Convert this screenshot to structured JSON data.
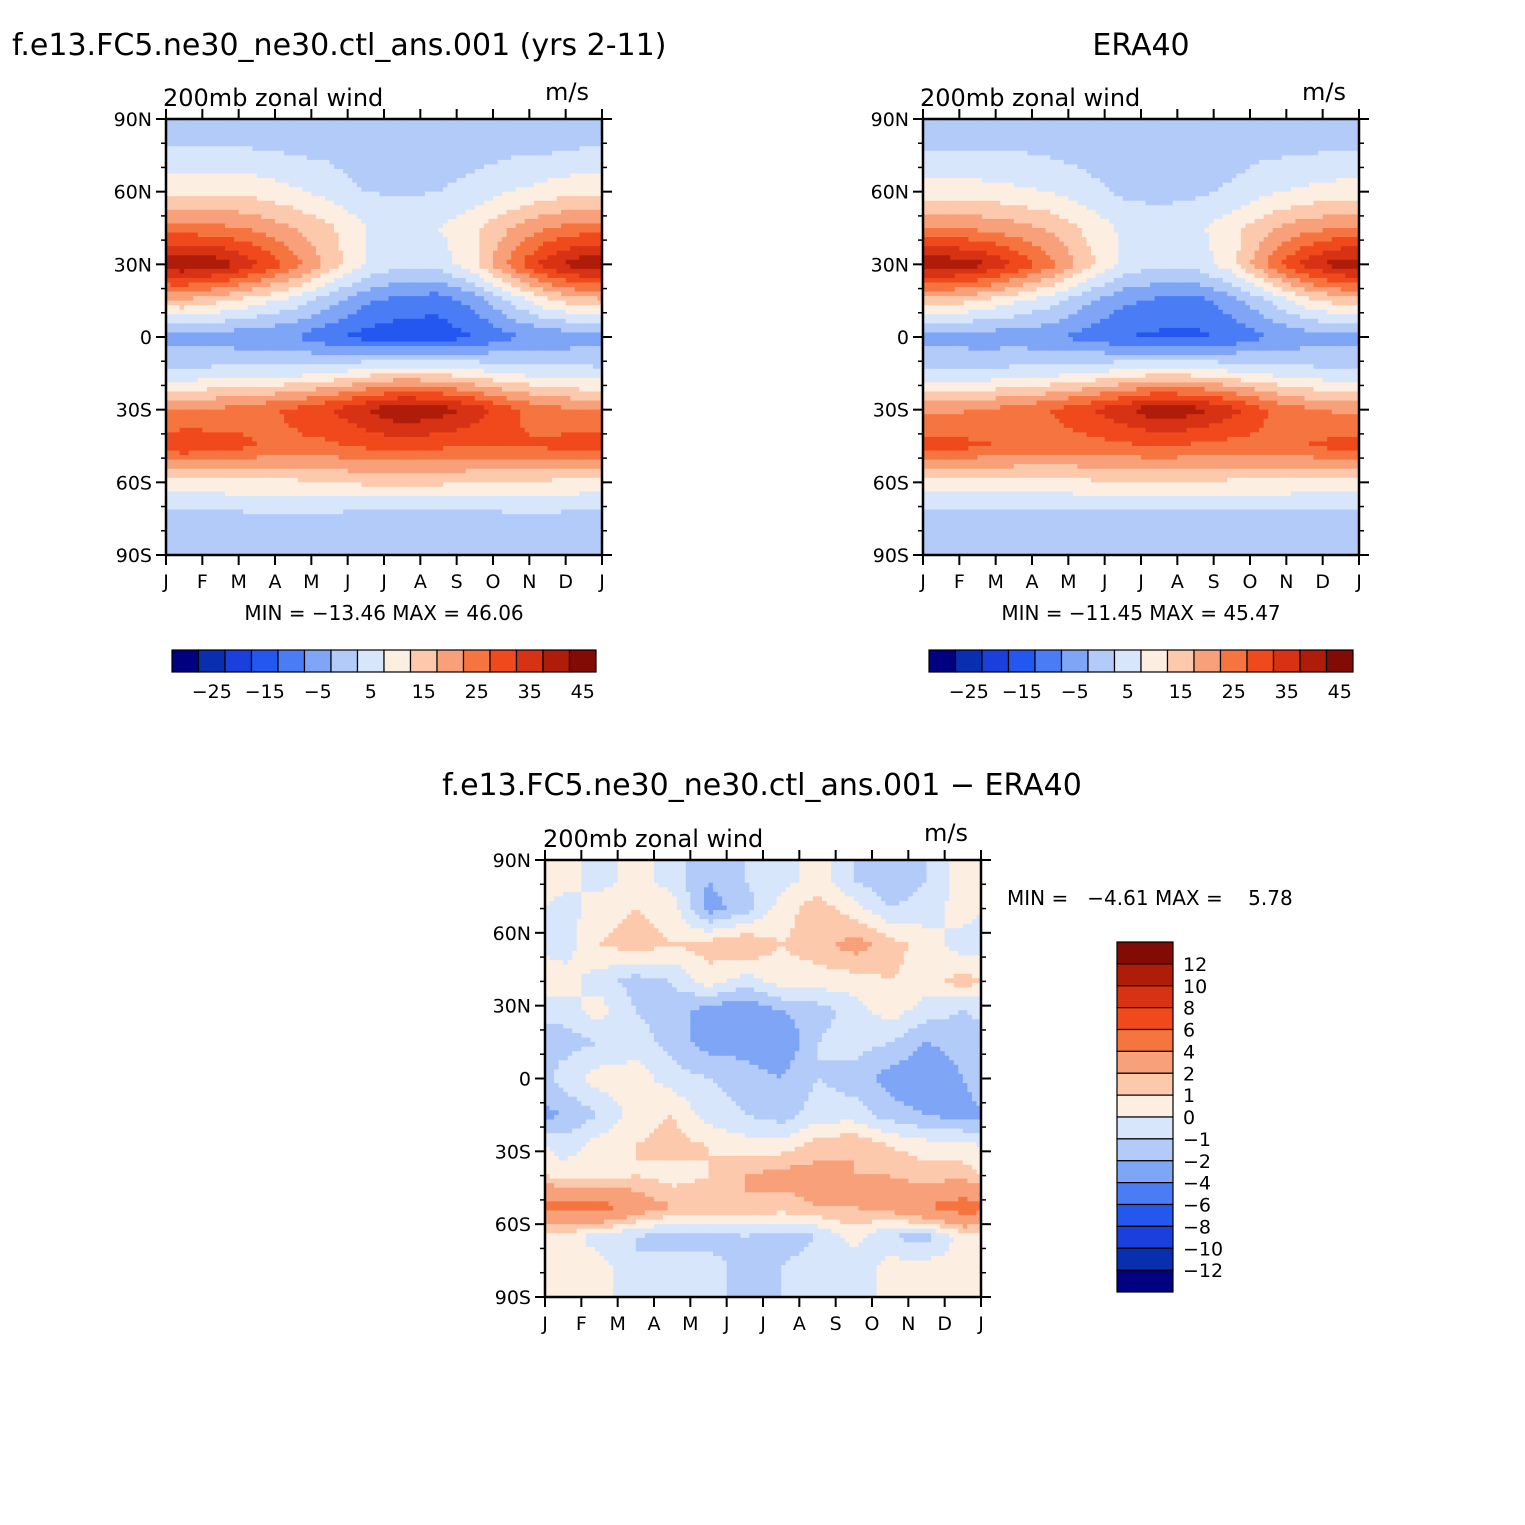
{
  "palette": {
    "main": [
      "#000080",
      "#0a2eb0",
      "#1a3fdc",
      "#2456f0",
      "#4a7cf5",
      "#7fa5f7",
      "#b3cbf9",
      "#d8e6fb",
      "#fdeee2",
      "#fcc9ad",
      "#f8a079",
      "#f5743f",
      "#f0491c",
      "#d83214",
      "#b01c0a",
      "#820b06"
    ],
    "diff": [
      "#000080",
      "#0a2eb0",
      "#1a3fdc",
      "#2456f0",
      "#4a7cf5",
      "#7fa5f7",
      "#b3cbf9",
      "#d8e6fb",
      "#fdeee2",
      "#fcc9ad",
      "#f8a079",
      "#f5743f",
      "#f0491c",
      "#d83214",
      "#b01c0a",
      "#820b06"
    ]
  },
  "chart_data": [
    {
      "type": "heatmap",
      "title": "f.e13.FC5.ne30_ne30.ctl_ans.001 (yrs 2-11)",
      "left_label": "200mb zonal wind",
      "units": "m/s",
      "x_ticks": [
        "J",
        "F",
        "M",
        "A",
        "M",
        "J",
        "J",
        "A",
        "S",
        "O",
        "N",
        "D",
        "J"
      ],
      "y_ticks": [
        "90N",
        "60N",
        "30N",
        "0",
        "30S",
        "60S",
        "90S"
      ],
      "xlim": [
        0,
        12
      ],
      "ylim": [
        -90,
        90
      ],
      "stats": "MIN = −13.46 MAX =  46.06",
      "levels": [
        -30,
        -25,
        -20,
        -15,
        -10,
        -5,
        0,
        5,
        10,
        15,
        20,
        25,
        30,
        35,
        40,
        45,
        50
      ],
      "colorbar_labels": [
        "−25",
        "−15",
        "−5",
        "5",
        "15",
        "25",
        "35",
        "45"
      ],
      "months": [
        "J",
        "F",
        "M",
        "A",
        "M",
        "J",
        "J",
        "A",
        "S",
        "O",
        "N",
        "D"
      ],
      "latitudes": [
        80,
        60,
        45,
        30,
        15,
        0,
        -15,
        -30,
        -45,
        -60,
        -75
      ],
      "values": [
        [
          4,
          4,
          4,
          3,
          3,
          1,
          1,
          2,
          2,
          3,
          3,
          4
        ],
        [
          14,
          14,
          13,
          11,
          8,
          5,
          4,
          5,
          7,
          10,
          12,
          14
        ],
        [
          27,
          26,
          24,
          20,
          16,
          10,
          9,
          10,
          14,
          20,
          25,
          27
        ],
        [
          45,
          43,
          36,
          28,
          18,
          10,
          6,
          7,
          14,
          27,
          38,
          44
        ],
        [
          19,
          16,
          12,
          8,
          2,
          -4,
          -7,
          -8,
          -3,
          6,
          14,
          18
        ],
        [
          -2,
          -3,
          -4,
          -5,
          -9,
          -12,
          -13,
          -13,
          -10,
          -6,
          -4,
          -3
        ],
        [
          6,
          7,
          8,
          8,
          10,
          13,
          15,
          14,
          12,
          9,
          8,
          7
        ],
        [
          25,
          26,
          28,
          31,
          35,
          40,
          45,
          43,
          38,
          31,
          27,
          25
        ],
        [
          34,
          33,
          30,
          29,
          29,
          31,
          32,
          31,
          30,
          30,
          31,
          33
        ],
        [
          13,
          13,
          14,
          14,
          15,
          16,
          16,
          16,
          15,
          15,
          14,
          13
        ],
        [
          3,
          3,
          3,
          3,
          3,
          2,
          2,
          2,
          2,
          3,
          3,
          3
        ]
      ]
    },
    {
      "type": "heatmap",
      "title": "ERA40",
      "left_label": "200mb zonal wind",
      "units": "m/s",
      "x_ticks": [
        "J",
        "F",
        "M",
        "A",
        "M",
        "J",
        "J",
        "A",
        "S",
        "O",
        "N",
        "D",
        "J"
      ],
      "y_ticks": [
        "90N",
        "60N",
        "30N",
        "0",
        "30S",
        "60S",
        "90S"
      ],
      "xlim": [
        0,
        12
      ],
      "ylim": [
        -90,
        90
      ],
      "stats": "MIN = −11.45 MAX =  45.47",
      "levels": [
        -30,
        -25,
        -20,
        -15,
        -10,
        -5,
        0,
        5,
        10,
        15,
        20,
        25,
        30,
        35,
        40,
        45,
        50
      ],
      "colorbar_labels": [
        "−25",
        "−15",
        "−5",
        "5",
        "15",
        "25",
        "35",
        "45"
      ],
      "months": [
        "J",
        "F",
        "M",
        "A",
        "M",
        "J",
        "J",
        "A",
        "S",
        "O",
        "N",
        "D"
      ],
      "latitudes": [
        80,
        60,
        45,
        30,
        15,
        0,
        -15,
        -30,
        -45,
        -60,
        -75
      ],
      "values": [
        [
          4,
          4,
          4,
          3,
          2,
          1,
          1,
          1,
          2,
          3,
          3,
          4
        ],
        [
          12,
          12,
          11,
          10,
          7,
          4,
          3,
          4,
          6,
          9,
          11,
          12
        ],
        [
          25,
          24,
          22,
          19,
          14,
          9,
          8,
          9,
          13,
          19,
          23,
          25
        ],
        [
          44,
          42,
          35,
          27,
          17,
          9,
          6,
          7,
          13,
          26,
          37,
          43
        ],
        [
          18,
          15,
          11,
          7,
          1,
          -4,
          -6,
          -7,
          -2,
          5,
          13,
          17
        ],
        [
          -2,
          -3,
          -3,
          -4,
          -7,
          -10,
          -11,
          -11,
          -9,
          -5,
          -3,
          -2
        ],
        [
          6,
          6,
          7,
          8,
          10,
          12,
          14,
          13,
          11,
          9,
          7,
          6
        ],
        [
          24,
          25,
          27,
          30,
          34,
          39,
          44,
          42,
          37,
          30,
          26,
          24
        ],
        [
          32,
          31,
          29,
          28,
          28,
          29,
          30,
          29,
          28,
          29,
          30,
          32
        ],
        [
          12,
          12,
          13,
          13,
          14,
          15,
          15,
          15,
          14,
          14,
          13,
          12
        ],
        [
          3,
          3,
          3,
          2,
          2,
          2,
          2,
          2,
          2,
          2,
          3,
          3
        ]
      ]
    },
    {
      "type": "heatmap",
      "title": "f.e13.FC5.ne30_ne30.ctl_ans.001 − ERA40",
      "left_label": "200mb zonal wind",
      "units": "m/s",
      "x_ticks": [
        "J",
        "F",
        "M",
        "A",
        "M",
        "J",
        "J",
        "A",
        "S",
        "O",
        "N",
        "D",
        "J"
      ],
      "y_ticks": [
        "90N",
        "60N",
        "30N",
        "0",
        "30S",
        "60S",
        "90S"
      ],
      "xlim": [
        0,
        12
      ],
      "ylim": [
        -90,
        90
      ],
      "stats": "MIN =   −4.61 MAX =    5.78",
      "levels": [
        -14,
        -12,
        -10,
        -8,
        -6,
        -4,
        -2,
        -1,
        0,
        1,
        2,
        4,
        6,
        8,
        10,
        12,
        14
      ],
      "colorbar_labels": [
        "12",
        "10",
        "8",
        "6",
        "4",
        "2",
        "1",
        "0",
        "−1",
        "−2",
        "−4",
        "−6",
        "−8",
        "−10",
        "−12"
      ],
      "months": [
        "J",
        "F",
        "M",
        "A",
        "M",
        "J",
        "J",
        "A",
        "S",
        "O",
        "N",
        "D"
      ],
      "latitudes": [
        82,
        70,
        55,
        40,
        28,
        15,
        0,
        -15,
        -28,
        -40,
        -53,
        -65,
        -78
      ],
      "values": [
        [
          0.5,
          -0.5,
          0.5,
          -0.5,
          -2,
          -1,
          -0.5,
          0.5,
          -1,
          -2,
          -1,
          0.5
        ],
        [
          -0.5,
          0.5,
          1,
          0.5,
          -2.5,
          -1.5,
          0.5,
          1.5,
          0.5,
          -1,
          -0.5,
          0.5
        ],
        [
          -0.5,
          1,
          1.5,
          1,
          1.5,
          2,
          1,
          1.5,
          2.5,
          1.5,
          0.5,
          -0.5
        ],
        [
          0.5,
          -0.5,
          -1.5,
          -1,
          0.5,
          -0.5,
          0.5,
          0.5,
          0.5,
          1,
          0.5,
          1.5
        ],
        [
          -0.5,
          0.5,
          -1,
          -1.5,
          -2.5,
          -3,
          -2,
          -1.5,
          -0.5,
          0.5,
          -0.5,
          -1
        ],
        [
          -1.5,
          -1,
          -0.5,
          -1.5,
          -2.5,
          -2.5,
          -3,
          -1,
          -0.5,
          -1,
          -2,
          -1.5
        ],
        [
          -0.5,
          0.5,
          0.5,
          -0.5,
          -1,
          -1.5,
          -2,
          -1,
          -1.5,
          -2.5,
          -3,
          -2
        ],
        [
          -2,
          -1,
          0.5,
          1,
          -0.5,
          -1,
          -1.5,
          -0.5,
          -0.5,
          -1.5,
          -2,
          -2.5
        ],
        [
          -0.5,
          0.5,
          1,
          1.5,
          1,
          0.5,
          0.5,
          1.5,
          2,
          1,
          0.5,
          0.5
        ],
        [
          0.5,
          0.5,
          1,
          0.5,
          1,
          2,
          2.5,
          2.5,
          2,
          2,
          1.5,
          1.5
        ],
        [
          4.5,
          5,
          3,
          2,
          2,
          2,
          1.5,
          2,
          2,
          2.5,
          4,
          5
        ],
        [
          0.5,
          -0.5,
          -1,
          -1.5,
          -1.5,
          -1,
          -1.5,
          -1,
          0.5,
          -1,
          -1.5,
          0.5
        ],
        [
          0.5,
          0.5,
          -1,
          -0.5,
          -0.5,
          -1.5,
          -1,
          -0.5,
          -1,
          0.5,
          0.5,
          0.5
        ]
      ]
    }
  ]
}
